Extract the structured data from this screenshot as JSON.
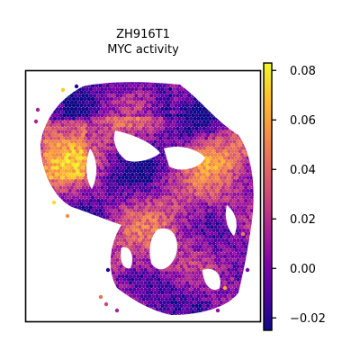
{
  "chart_data": {
    "type": "heatmap",
    "title_lines": [
      "ZH916T1",
      "MYC activity"
    ],
    "xlabel": "",
    "ylabel": "",
    "colormap": "plasma",
    "colorbar": {
      "range": [
        -0.025,
        0.083
      ],
      "ticks": [
        0.08,
        0.06,
        0.04,
        0.02,
        0.0,
        -0.02
      ],
      "tick_labels": [
        "0.08",
        "0.06",
        "0.04",
        "0.02",
        "0.00",
        "−0.02"
      ]
    },
    "grid": false,
    "legend": "colorbar-right"
  }
}
